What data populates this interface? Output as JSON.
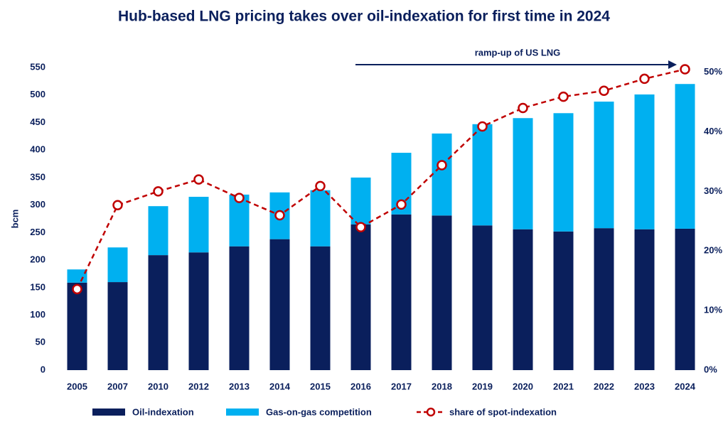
{
  "chart_data": {
    "type": "stacked-bar-line",
    "title": "Hub-based LNG pricing takes over oil-indexation for first time in 2024",
    "y_label": "bcm",
    "annotation": "ramp-up of US LNG",
    "categories": [
      "2005",
      "2007",
      "2010",
      "2012",
      "2013",
      "2014",
      "2015",
      "2016",
      "2017",
      "2018",
      "2019",
      "2020",
      "2021",
      "2022",
      "2023",
      "2024"
    ],
    "series": [
      {
        "name": "Oil-indexation",
        "color": "#0a1f5c",
        "values": [
          159,
          160,
          209,
          214,
          225,
          238,
          225,
          265,
          283,
          281,
          263,
          256,
          252,
          258,
          256,
          257
        ]
      },
      {
        "name": "Gas-on-gas competition",
        "color": "#00b0f0",
        "values": [
          24,
          63,
          89,
          101,
          94,
          85,
          102,
          85,
          112,
          149,
          184,
          202,
          215,
          230,
          245,
          263
        ]
      },
      {
        "name": "share of spot-indexation",
        "color": "#c00000",
        "axis": "y2",
        "values": [
          13.6,
          27.7,
          30,
          32,
          28.9,
          26,
          30.9,
          24,
          27.8,
          34.4,
          40.9,
          44,
          45.9,
          46.9,
          48.9,
          50.5
        ]
      }
    ],
    "ylim": [
      0,
      550
    ],
    "yticks": [
      0,
      50,
      100,
      150,
      200,
      250,
      300,
      350,
      400,
      450,
      500,
      550
    ],
    "y2lim": [
      0,
      50.8
    ],
    "y2ticks": [
      {
        "value": 0,
        "label": "0%"
      },
      {
        "value": 10,
        "label": "10%"
      },
      {
        "value": 20,
        "label": "20%"
      },
      {
        "value": 30,
        "label": "30%"
      },
      {
        "value": 40,
        "label": "40%"
      },
      {
        "value": 50,
        "label": "50%"
      }
    ]
  }
}
